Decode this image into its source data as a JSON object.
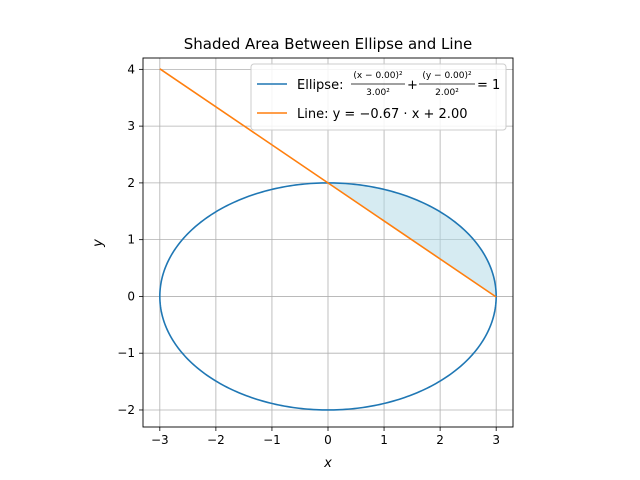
{
  "chart_data": {
    "type": "line",
    "title": "Shaded Area Between Ellipse and Line",
    "xlabel": "x",
    "ylabel": "y",
    "xlim": [
      -3.3,
      3.3
    ],
    "ylim": [
      -2.3,
      4.2
    ],
    "xticks": [
      -3,
      -2,
      -1,
      0,
      1,
      2,
      3
    ],
    "xtick_labels": [
      "−3",
      "−2",
      "−1",
      "0",
      "1",
      "2",
      "3"
    ],
    "yticks": [
      -2,
      -1,
      0,
      1,
      2,
      3,
      4
    ],
    "ytick_labels": [
      "−2",
      "−1",
      "0",
      "1",
      "2",
      "3",
      "4"
    ],
    "grid": true,
    "legend_position": "top-right",
    "series": [
      {
        "name": "Ellipse",
        "kind": "ellipse",
        "center": [
          0.0,
          0.0
        ],
        "a": 3.0,
        "b": 2.0,
        "color": "#1f77b4",
        "legend_prefix": "Ellipse: ",
        "legend_num1": "(x − 0.00)²",
        "legend_den1": "3.00²",
        "legend_num2": "(y − 0.00)²",
        "legend_den2": "2.00²",
        "legend_suffix": "= 1"
      },
      {
        "name": "Line",
        "kind": "line",
        "slope": -0.67,
        "intercept": 2.0,
        "x_range": [
          -3,
          3
        ],
        "color": "#ff7f0e",
        "legend_text": "Line: y = −0.67 · x + 2.00"
      }
    ],
    "shaded_region": {
      "description": "area between upper ellipse arc and line",
      "x_range": [
        0,
        3
      ],
      "color": "#add8e6",
      "opacity": 0.5
    }
  }
}
